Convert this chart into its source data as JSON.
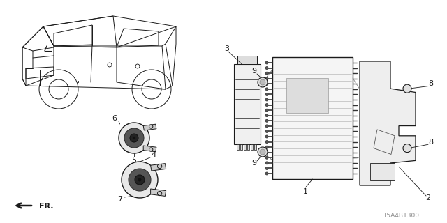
{
  "bg_color": "#ffffff",
  "fig_width": 6.4,
  "fig_height": 3.2,
  "dpi": 100,
  "part_number": "T5A4B1300",
  "fr_label": "FR.",
  "lc": "#1a1a1a",
  "tc": "#1a1a1a",
  "gray": "#666666"
}
